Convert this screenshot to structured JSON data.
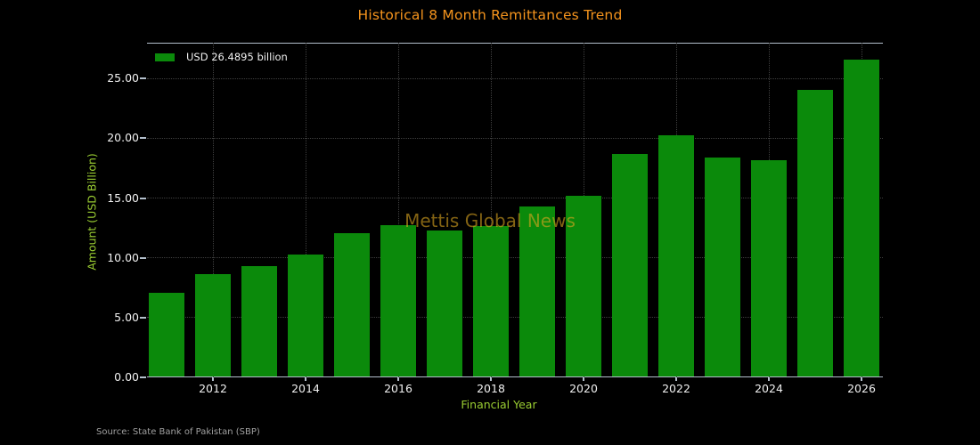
{
  "colors": {
    "bg": "#000000",
    "title": "#f5941d",
    "bar": "#0b8a0b",
    "axis_label": "#9acd32",
    "tick_label": "#f0f0f0",
    "spine": "#b3bfcc",
    "grid": "#3f3f3f",
    "source": "#a0a0a0",
    "watermark": "rgba(218,165,32,0.6)",
    "legend_text": "#f0f0f0"
  },
  "watermark": "Mettis Global News",
  "source_note": "Source: State Bank of Pakistan (SBP)",
  "chart_data": {
    "type": "bar",
    "title": "Historical 8 Month Remittances Trend",
    "xlabel": "Financial Year",
    "ylabel": "Amount (USD Billion)",
    "categories": [
      "2011",
      "2012",
      "2013",
      "2014",
      "2015",
      "2016",
      "2017",
      "2018",
      "2019",
      "2020",
      "2021",
      "2022",
      "2023",
      "2024",
      "2025",
      "2026"
    ],
    "values": [
      7.0,
      8.55,
      9.25,
      10.2,
      12.0,
      12.65,
      12.25,
      12.55,
      14.25,
      15.1,
      18.65,
      20.15,
      18.3,
      18.1,
      23.97,
      26.4895
    ],
    "legend": "USD 26.4895 billion",
    "legend_position": "upper left",
    "bar_color": "#0b8a0b",
    "ylim": [
      0,
      28
    ],
    "yticks": [
      0,
      5,
      10,
      15,
      20,
      25
    ],
    "ytick_labels": [
      "0.00",
      "5.00",
      "10.00",
      "15.00",
      "20.00",
      "25.00"
    ],
    "xticks": [
      2012,
      2014,
      2016,
      2018,
      2020,
      2022,
      2024,
      2026
    ],
    "grid": true
  }
}
